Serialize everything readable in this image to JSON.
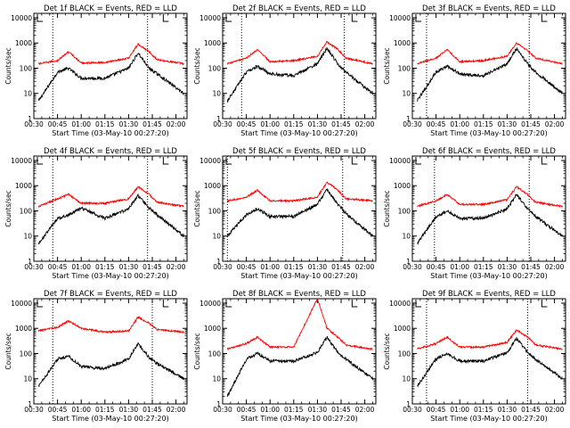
{
  "figure": {
    "xlabel": "Start Time (03-May-10 00:27:20)",
    "ylabel": "Counts/sec",
    "x_tick_labels": [
      "00:30",
      "00:45",
      "01:00",
      "01:15",
      "01:30",
      "01:45",
      "02:00"
    ],
    "y_tick_labels": [
      "1",
      "10",
      "100",
      "1000",
      "10000"
    ],
    "colors": {
      "events": "#000000",
      "lld": "#ff0000",
      "axes": "#000000",
      "marker": "#000000"
    }
  },
  "chart_data": [
    {
      "type": "line",
      "title": "Det 1f BLACK = Events, RED = LLD",
      "xlabel": "Start Time (03-May-10 00:27:20)",
      "ylabel": "Counts/sec",
      "xlim": [
        "00:30",
        "02:07"
      ],
      "ylim": [
        1,
        15000
      ],
      "yscale": "log",
      "vlines": [
        "00:42",
        "01:42"
      ],
      "grid": false,
      "x": [
        "00:33",
        "00:45",
        "00:52",
        "01:00",
        "01:15",
        "01:30",
        "01:36",
        "01:43",
        "01:48",
        "02:05"
      ],
      "series": [
        {
          "name": "Events",
          "values": [
            5,
            70,
            100,
            40,
            40,
            100,
            400,
            100,
            60,
            10
          ]
        },
        {
          "name": "LLD",
          "values": [
            150,
            200,
            450,
            160,
            170,
            250,
            900,
            450,
            220,
            150
          ]
        }
      ]
    },
    {
      "type": "line",
      "title": "Det 2f BLACK = Events, RED = LLD",
      "xlabel": "Start Time (03-May-10 00:27:20)",
      "ylabel": "Counts/sec",
      "xlim": [
        "00:30",
        "02:07"
      ],
      "ylim": [
        1,
        15000
      ],
      "yscale": "log",
      "vlines": [
        "00:42",
        "01:47"
      ],
      "grid": false,
      "x": [
        "00:33",
        "00:45",
        "00:52",
        "01:00",
        "01:15",
        "01:30",
        "01:36",
        "01:43",
        "01:48",
        "02:05"
      ],
      "series": [
        {
          "name": "Events",
          "values": [
            5,
            70,
            120,
            60,
            50,
            150,
            600,
            150,
            70,
            10
          ]
        },
        {
          "name": "LLD",
          "values": [
            150,
            250,
            550,
            180,
            200,
            300,
            1100,
            550,
            250,
            150
          ]
        }
      ]
    },
    {
      "type": "line",
      "title": "Det 3f BLACK = Events, RED = LLD",
      "xlabel": "Start Time (03-May-10 00:27:20)",
      "ylabel": "Counts/sec",
      "xlim": [
        "00:30",
        "02:07"
      ],
      "ylim": [
        1,
        15000
      ],
      "yscale": "log",
      "vlines": [
        "00:39",
        "01:44"
      ],
      "grid": false,
      "x": [
        "00:33",
        "00:45",
        "00:52",
        "01:00",
        "01:15",
        "01:30",
        "01:36",
        "01:43",
        "01:48",
        "02:05"
      ],
      "series": [
        {
          "name": "Events",
          "values": [
            5,
            70,
            120,
            60,
            50,
            150,
            600,
            150,
            70,
            10
          ]
        },
        {
          "name": "LLD",
          "values": [
            150,
            250,
            550,
            180,
            200,
            300,
            1000,
            500,
            250,
            150
          ]
        }
      ]
    },
    {
      "type": "line",
      "title": "Det 4f BLACK = Events, RED = LLD",
      "xlabel": "Start Time (03-May-10 00:27:20)",
      "ylabel": "Counts/sec",
      "xlim": [
        "00:30",
        "02:07"
      ],
      "ylim": [
        1,
        15000
      ],
      "yscale": "log",
      "vlines": [
        "00:42",
        "01:42"
      ],
      "grid": false,
      "x": [
        "00:33",
        "00:45",
        "00:52",
        "01:00",
        "01:15",
        "01:30",
        "01:36",
        "01:43",
        "01:48",
        "02:05"
      ],
      "series": [
        {
          "name": "Events",
          "values": [
            5,
            50,
            70,
            130,
            50,
            120,
            400,
            130,
            70,
            10
          ]
        },
        {
          "name": "LLD",
          "values": [
            150,
            300,
            450,
            200,
            200,
            300,
            900,
            450,
            220,
            150
          ]
        }
      ]
    },
    {
      "type": "line",
      "title": "Det 5f BLACK = Events, RED = LLD",
      "xlabel": "Start Time (03-May-10 00:27:20)",
      "ylabel": "Counts/sec",
      "xlim": [
        "00:30",
        "02:07"
      ],
      "ylim": [
        1,
        15000
      ],
      "yscale": "log",
      "vlines": [
        "00:33",
        "01:46"
      ],
      "grid": false,
      "x": [
        "00:33",
        "00:45",
        "00:52",
        "01:00",
        "01:15",
        "01:30",
        "01:36",
        "01:43",
        "01:48",
        "02:05"
      ],
      "series": [
        {
          "name": "Events",
          "values": [
            10,
            70,
            120,
            60,
            60,
            180,
            700,
            180,
            80,
            10
          ]
        },
        {
          "name": "LLD",
          "values": [
            250,
            350,
            650,
            250,
            250,
            350,
            1400,
            650,
            300,
            250
          ]
        }
      ]
    },
    {
      "type": "line",
      "title": "Det 6f BLACK = Events, RED = LLD",
      "xlabel": "Start Time (03-May-10 00:27:20)",
      "ylabel": "Counts/sec",
      "xlim": [
        "00:30",
        "02:07"
      ],
      "ylim": [
        1,
        15000
      ],
      "yscale": "log",
      "vlines": [
        "00:44",
        "01:44"
      ],
      "grid": false,
      "x": [
        "00:33",
        "00:45",
        "00:52",
        "01:00",
        "01:15",
        "01:30",
        "01:36",
        "01:43",
        "01:48",
        "02:05"
      ],
      "series": [
        {
          "name": "Events",
          "values": [
            5,
            60,
            100,
            50,
            50,
            120,
            450,
            120,
            60,
            10
          ]
        },
        {
          "name": "LLD",
          "values": [
            150,
            250,
            450,
            180,
            180,
            280,
            900,
            450,
            220,
            150
          ]
        }
      ]
    },
    {
      "type": "line",
      "title": "Det 7f BLACK = Events, RED = LLD",
      "xlabel": "Start Time (03-May-10 00:27:20)",
      "ylabel": "Counts/sec",
      "xlim": [
        "00:30",
        "02:07"
      ],
      "ylim": [
        1,
        15000
      ],
      "yscale": "log",
      "vlines": [
        "00:42",
        "01:45"
      ],
      "grid": false,
      "x": [
        "00:33",
        "00:45",
        "00:52",
        "01:00",
        "01:15",
        "01:30",
        "01:36",
        "01:43",
        "01:48",
        "02:05"
      ],
      "series": [
        {
          "name": "Events",
          "values": [
            5,
            60,
            80,
            30,
            25,
            60,
            250,
            70,
            40,
            10
          ]
        },
        {
          "name": "LLD",
          "values": [
            800,
            1100,
            2000,
            1000,
            700,
            800,
            2800,
            1600,
            900,
            700
          ]
        }
      ]
    },
    {
      "type": "line",
      "title": "Det 8f BLACK = Events, RED = LLD",
      "xlabel": "Start Time (03-May-10 00:27:20)",
      "ylabel": "Counts/sec",
      "xlim": [
        "00:30",
        "02:07"
      ],
      "ylim": [
        1,
        15000
      ],
      "yscale": "log",
      "vlines": [],
      "grid": false,
      "x": [
        "00:33",
        "00:45",
        "00:52",
        "01:00",
        "01:15",
        "01:30",
        "01:36",
        "01:43",
        "01:48",
        "02:05"
      ],
      "series": [
        {
          "name": "Events",
          "values": [
            2,
            60,
            100,
            50,
            50,
            110,
            450,
            110,
            60,
            10
          ]
        },
        {
          "name": "LLD",
          "values": [
            150,
            250,
            450,
            180,
            180,
            15000,
            1000,
            450,
            220,
            150
          ]
        }
      ]
    },
    {
      "type": "line",
      "title": "Det 9f BLACK = Events, RED = LLD",
      "xlabel": "Start Time (03-May-10 00:27:20)",
      "ylabel": "Counts/sec",
      "xlim": [
        "00:30",
        "02:07"
      ],
      "ylim": [
        1,
        15000
      ],
      "yscale": "log",
      "vlines": [
        "00:39",
        "01:43"
      ],
      "grid": false,
      "x": [
        "00:33",
        "00:45",
        "00:52",
        "01:00",
        "01:15",
        "01:30",
        "01:36",
        "01:43",
        "01:48",
        "02:05"
      ],
      "series": [
        {
          "name": "Events",
          "values": [
            5,
            60,
            100,
            50,
            50,
            110,
            400,
            110,
            60,
            10
          ]
        },
        {
          "name": "LLD",
          "values": [
            150,
            250,
            450,
            180,
            180,
            280,
            850,
            450,
            220,
            150
          ]
        }
      ]
    }
  ]
}
